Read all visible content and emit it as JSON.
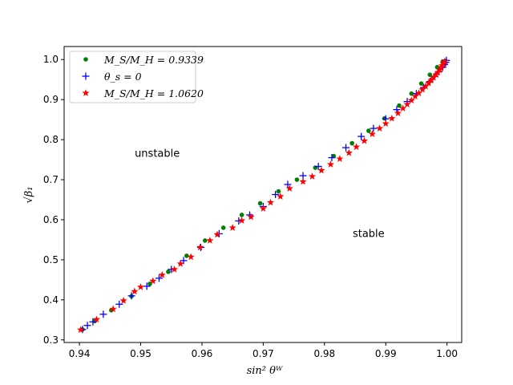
{
  "chart_data": {
    "type": "scatter",
    "title": "",
    "xlabel": "sin² θᵂ",
    "ylabel": "√β₁",
    "xlim": [
      0.9375,
      1.0024
    ],
    "ylim": [
      0.2935,
      1.0325
    ],
    "grid": false,
    "legend_position": "top-left",
    "xticks": [
      0.94,
      0.95,
      0.96,
      0.97,
      0.98,
      0.99,
      1.0
    ],
    "xtick_labels": [
      "0.94",
      "0.95",
      "0.96",
      "0.97",
      "0.98",
      "0.99",
      "1.00"
    ],
    "yticks": [
      0.3,
      0.4,
      0.5,
      0.6,
      0.7,
      0.8,
      0.9,
      1.0
    ],
    "ytick_labels": [
      "0.3",
      "0.4",
      "0.5",
      "0.6",
      "0.7",
      "0.8",
      "0.9",
      "1.0"
    ],
    "annotations": [
      {
        "text": "unstable",
        "x": 0.9527,
        "y": 0.757
      },
      {
        "text": "stable",
        "x": 0.9872,
        "y": 0.557
      }
    ],
    "series": [
      {
        "name": "M_S/M_H = 0.9339",
        "marker": "dot",
        "color": "#008000",
        "points": [
          [
            0.9405,
            0.326
          ],
          [
            0.9425,
            0.347
          ],
          [
            0.9452,
            0.374
          ],
          [
            0.9485,
            0.409
          ],
          [
            0.9515,
            0.44
          ],
          [
            0.9545,
            0.47
          ],
          [
            0.9575,
            0.51
          ],
          [
            0.9605,
            0.548
          ],
          [
            0.9635,
            0.58
          ],
          [
            0.9665,
            0.612
          ],
          [
            0.9695,
            0.641
          ],
          [
            0.9725,
            0.671
          ],
          [
            0.9755,
            0.7
          ],
          [
            0.9785,
            0.73
          ],
          [
            0.9815,
            0.759
          ],
          [
            0.9845,
            0.791
          ],
          [
            0.9872,
            0.822
          ],
          [
            0.9898,
            0.853
          ],
          [
            0.9922,
            0.885
          ],
          [
            0.9942,
            0.915
          ],
          [
            0.9958,
            0.94
          ],
          [
            0.9972,
            0.962
          ],
          [
            0.9984,
            0.981
          ],
          [
            0.9993,
            0.995
          ]
        ]
      },
      {
        "name": "θ_s = 0",
        "marker": "plus",
        "color": "#0000ff",
        "points": [
          [
            0.9405,
            0.326
          ],
          [
            0.9413,
            0.336
          ],
          [
            0.9422,
            0.345
          ],
          [
            0.9439,
            0.364
          ],
          [
            0.9465,
            0.389
          ],
          [
            0.9485,
            0.41
          ],
          [
            0.951,
            0.434
          ],
          [
            0.953,
            0.454
          ],
          [
            0.955,
            0.476
          ],
          [
            0.957,
            0.498
          ],
          [
            0.9598,
            0.531
          ],
          [
            0.9628,
            0.565
          ],
          [
            0.966,
            0.597
          ],
          [
            0.9678,
            0.612
          ],
          [
            0.97,
            0.633
          ],
          [
            0.972,
            0.663
          ],
          [
            0.974,
            0.688
          ],
          [
            0.9765,
            0.71
          ],
          [
            0.979,
            0.733
          ],
          [
            0.9812,
            0.755
          ],
          [
            0.9835,
            0.78
          ],
          [
            0.986,
            0.808
          ],
          [
            0.988,
            0.828
          ],
          [
            0.99,
            0.852
          ],
          [
            0.9918,
            0.875
          ],
          [
            0.9935,
            0.895
          ],
          [
            0.995,
            0.915
          ],
          [
            0.9962,
            0.93
          ],
          [
            0.9972,
            0.945
          ],
          [
            0.998,
            0.958
          ],
          [
            0.9987,
            0.97
          ],
          [
            0.9993,
            0.981
          ],
          [
            0.9996,
            0.988
          ],
          [
            0.9998,
            0.993
          ],
          [
            0.9999,
            0.998
          ]
        ]
      },
      {
        "name": "M_S/M_H = 1.0620",
        "marker": "star",
        "color": "#ff0000",
        "points": [
          [
            0.9402,
            0.325
          ],
          [
            0.9428,
            0.351
          ],
          [
            0.9455,
            0.377
          ],
          [
            0.9472,
            0.398
          ],
          [
            0.949,
            0.421
          ],
          [
            0.95,
            0.432
          ],
          [
            0.952,
            0.447
          ],
          [
            0.9535,
            0.462
          ],
          [
            0.9555,
            0.476
          ],
          [
            0.9565,
            0.49
          ],
          [
            0.9582,
            0.507
          ],
          [
            0.9597,
            0.531
          ],
          [
            0.9613,
            0.548
          ],
          [
            0.9625,
            0.563
          ],
          [
            0.965,
            0.58
          ],
          [
            0.9665,
            0.598
          ],
          [
            0.968,
            0.607
          ],
          [
            0.97,
            0.628
          ],
          [
            0.9712,
            0.643
          ],
          [
            0.9728,
            0.658
          ],
          [
            0.9743,
            0.678
          ],
          [
            0.9765,
            0.695
          ],
          [
            0.978,
            0.708
          ],
          [
            0.9795,
            0.723
          ],
          [
            0.981,
            0.738
          ],
          [
            0.9825,
            0.752
          ],
          [
            0.984,
            0.767
          ],
          [
            0.9852,
            0.782
          ],
          [
            0.9865,
            0.797
          ],
          [
            0.9878,
            0.814
          ],
          [
            0.989,
            0.828
          ],
          [
            0.99,
            0.84
          ],
          [
            0.991,
            0.853
          ],
          [
            0.992,
            0.866
          ],
          [
            0.9928,
            0.878
          ],
          [
            0.9935,
            0.888
          ],
          [
            0.9942,
            0.898
          ],
          [
            0.9948,
            0.908
          ],
          [
            0.9954,
            0.916
          ],
          [
            0.996,
            0.925
          ],
          [
            0.9965,
            0.933
          ],
          [
            0.997,
            0.941
          ],
          [
            0.9974,
            0.948
          ],
          [
            0.9978,
            0.955
          ],
          [
            0.9982,
            0.962
          ],
          [
            0.9985,
            0.968
          ],
          [
            0.9988,
            0.974
          ],
          [
            0.999,
            0.98
          ],
          [
            0.9992,
            0.985
          ],
          [
            0.9994,
            0.99
          ],
          [
            0.9996,
            0.995
          ]
        ]
      }
    ]
  }
}
